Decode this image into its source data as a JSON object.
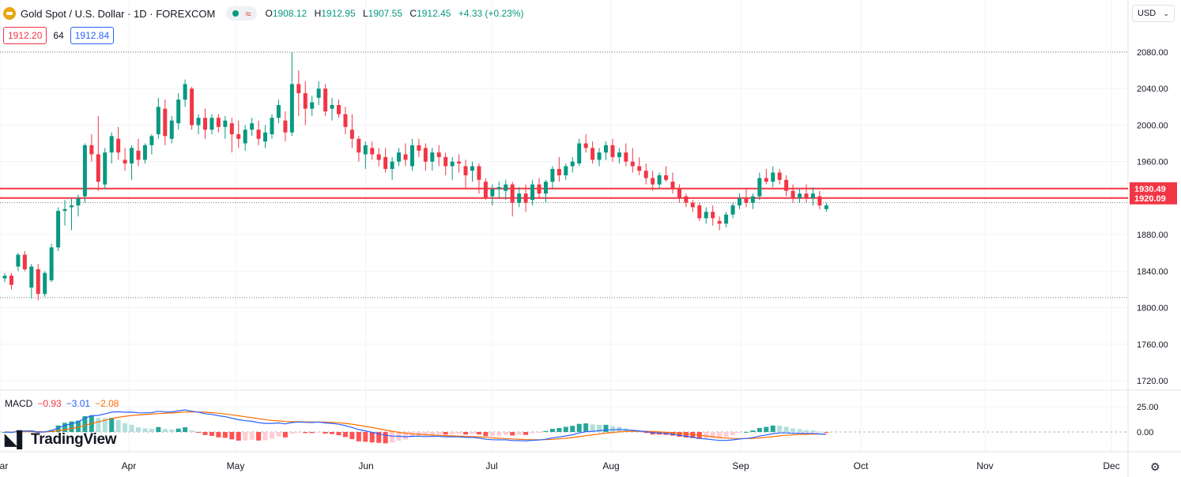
{
  "header": {
    "title": "Gold Spot / U.S. Dollar · 1D · FOREXCOM",
    "open_label": "O",
    "open_value": "1908.12",
    "high_label": "H",
    "high_value": "1912.95",
    "low_label": "L",
    "low_value": "1907.55",
    "close_label": "C",
    "close_value": "1912.45",
    "change": "+4.33 (+0.23%)",
    "indicator_icons": [
      "status-dot-icon",
      "wave-icon"
    ]
  },
  "trade": {
    "sell_price": "1912.20",
    "spread": "64",
    "buy_price": "1912.84"
  },
  "currency": {
    "label": "USD",
    "icon": "chevron-down-icon"
  },
  "macd": {
    "label": "MACD",
    "hist": "−0.93",
    "macd": "−3.01",
    "signal": "−2.08"
  },
  "brand": {
    "label": "TradingView",
    "icon": "tradingview-logo-icon"
  },
  "settings": {
    "icon": "gear-icon"
  },
  "colors": {
    "up": "#089981",
    "down": "#f23645",
    "macd_line": "#2962ff",
    "signal_line": "#ff6d00",
    "hist_up": "#26a69a",
    "hist_up_fading": "#b2dfdb",
    "hist_down": "#ff5252",
    "hist_down_fading": "#ffcdd2"
  },
  "price_levels": [
    {
      "value": "1930.49",
      "price": 1930.49
    },
    {
      "value": "1920.09",
      "price": 1920.09
    }
  ],
  "price_axis": {
    "ticks": [
      "2080.00",
      "2040.00",
      "2000.00",
      "1960.00",
      "1920.00",
      "1880.00",
      "1840.00",
      "1800.00",
      "1760.00",
      "1720.00"
    ],
    "values": [
      2080,
      2040,
      2000,
      1960,
      1920,
      1880,
      1840,
      1800,
      1760,
      1720
    ]
  },
  "macd_axis": {
    "ticks": [
      "25.00",
      "0.00"
    ],
    "values": [
      25,
      0
    ]
  },
  "time_axis": {
    "labels": [
      "Mar",
      "Apr",
      "May",
      "Jun",
      "Jul",
      "Aug",
      "Sep",
      "Oct",
      "Nov",
      "Dec"
    ]
  },
  "chart_data": {
    "type": "candlestick",
    "title": "Gold Spot / U.S. Dollar · 1D · FOREXCOM",
    "ylim": [
      1700,
      2100
    ],
    "candles": [
      [
        1832,
        1838,
        1828,
        1835
      ],
      [
        1835,
        1838,
        1820,
        1825
      ],
      [
        1845,
        1860,
        1840,
        1858
      ],
      [
        1858,
        1862,
        1840,
        1842
      ],
      [
        1822,
        1848,
        1810,
        1845
      ],
      [
        1842,
        1848,
        1808,
        1815
      ],
      [
        1815,
        1840,
        1812,
        1838
      ],
      [
        1830,
        1870,
        1828,
        1866
      ],
      [
        1866,
        1910,
        1862,
        1906
      ],
      [
        1906,
        1918,
        1890,
        1908
      ],
      [
        1910,
        1920,
        1885,
        1912
      ],
      [
        1912,
        1924,
        1900,
        1920
      ],
      [
        1922,
        1980,
        1915,
        1978
      ],
      [
        1978,
        1990,
        1960,
        1968
      ],
      [
        1968,
        2010,
        1928,
        1938
      ],
      [
        1935,
        1975,
        1930,
        1970
      ],
      [
        1970,
        1992,
        1958,
        1988
      ],
      [
        1985,
        1998,
        1962,
        1970
      ],
      [
        1962,
        1975,
        1950,
        1958
      ],
      [
        1958,
        1978,
        1940,
        1975
      ],
      [
        1972,
        1985,
        1955,
        1962
      ],
      [
        1962,
        1980,
        1958,
        1978
      ],
      [
        1978,
        1990,
        1968,
        1988
      ],
      [
        1990,
        2030,
        1985,
        2020
      ],
      [
        2018,
        2028,
        1978,
        1988
      ],
      [
        1985,
        2010,
        1980,
        2005
      ],
      [
        2002,
        2035,
        1995,
        2028
      ],
      [
        2028,
        2050,
        2020,
        2045
      ],
      [
        2040,
        2042,
        1995,
        2000
      ],
      [
        2000,
        2012,
        1990,
        2008
      ],
      [
        2008,
        2018,
        1985,
        1995
      ],
      [
        1995,
        2012,
        1990,
        2008
      ],
      [
        2008,
        2012,
        1992,
        1998
      ],
      [
        1998,
        2010,
        1985,
        2005
      ],
      [
        2002,
        2008,
        1970,
        1990
      ],
      [
        1990,
        2005,
        1975,
        1985
      ],
      [
        1980,
        2000,
        1972,
        1995
      ],
      [
        1995,
        2008,
        1988,
        2002
      ],
      [
        1995,
        2005,
        1978,
        1985
      ],
      [
        1982,
        2000,
        1975,
        1992
      ],
      [
        1990,
        2012,
        1985,
        2008
      ],
      [
        2008,
        2028,
        2002,
        2022
      ],
      [
        2005,
        2015,
        1982,
        1992
      ],
      [
        1992,
        2080,
        1988,
        2045
      ],
      [
        2045,
        2060,
        2010,
        2035
      ],
      [
        2035,
        2048,
        2000,
        2018
      ],
      [
        2018,
        2032,
        2010,
        2025
      ],
      [
        2030,
        2048,
        2022,
        2040
      ],
      [
        2040,
        2045,
        2010,
        2015
      ],
      [
        2018,
        2030,
        2005,
        2022
      ],
      [
        2022,
        2028,
        2008,
        2012
      ],
      [
        2012,
        2020,
        1990,
        1998
      ],
      [
        1995,
        2012,
        1975,
        1985
      ],
      [
        1985,
        1988,
        1960,
        1970
      ],
      [
        1968,
        1982,
        1952,
        1978
      ],
      [
        1975,
        1982,
        1962,
        1968
      ],
      [
        1968,
        1975,
        1955,
        1962
      ],
      [
        1965,
        1975,
        1948,
        1952
      ],
      [
        1952,
        1965,
        1940,
        1960
      ],
      [
        1960,
        1975,
        1955,
        1970
      ],
      [
        1968,
        1980,
        1955,
        1962
      ],
      [
        1955,
        1985,
        1950,
        1978
      ],
      [
        1978,
        1985,
        1965,
        1972
      ],
      [
        1975,
        1980,
        1950,
        1960
      ],
      [
        1960,
        1975,
        1950,
        1970
      ],
      [
        1970,
        1978,
        1955,
        1965
      ],
      [
        1965,
        1970,
        1945,
        1955
      ],
      [
        1955,
        1965,
        1940,
        1960
      ],
      [
        1960,
        1968,
        1948,
        1958
      ],
      [
        1955,
        1962,
        1930,
        1945
      ],
      [
        1950,
        1960,
        1938,
        1955
      ],
      [
        1955,
        1958,
        1925,
        1940
      ],
      [
        1938,
        1942,
        1918,
        1920
      ],
      [
        1922,
        1935,
        1912,
        1930
      ],
      [
        1930,
        1938,
        1920,
        1932
      ],
      [
        1928,
        1940,
        1918,
        1935
      ],
      [
        1935,
        1938,
        1900,
        1915
      ],
      [
        1915,
        1932,
        1910,
        1925
      ],
      [
        1925,
        1935,
        1905,
        1915
      ],
      [
        1918,
        1940,
        1912,
        1935
      ],
      [
        1935,
        1942,
        1920,
        1925
      ],
      [
        1925,
        1940,
        1915,
        1938
      ],
      [
        1938,
        1955,
        1930,
        1952
      ],
      [
        1952,
        1965,
        1938,
        1945
      ],
      [
        1945,
        1958,
        1940,
        1955
      ],
      [
        1955,
        1965,
        1948,
        1960
      ],
      [
        1958,
        1985,
        1955,
        1980
      ],
      [
        1980,
        1990,
        1970,
        1975
      ],
      [
        1975,
        1982,
        1958,
        1962
      ],
      [
        1962,
        1975,
        1955,
        1970
      ],
      [
        1970,
        1982,
        1962,
        1978
      ],
      [
        1978,
        1985,
        1960,
        1965
      ],
      [
        1965,
        1975,
        1958,
        1970
      ],
      [
        1970,
        1980,
        1955,
        1960
      ],
      [
        1960,
        1975,
        1948,
        1955
      ],
      [
        1955,
        1965,
        1945,
        1950
      ],
      [
        1950,
        1958,
        1935,
        1942
      ],
      [
        1942,
        1950,
        1928,
        1935
      ],
      [
        1935,
        1948,
        1930,
        1945
      ],
      [
        1945,
        1955,
        1938,
        1940
      ],
      [
        1938,
        1948,
        1925,
        1930
      ],
      [
        1930,
        1935,
        1915,
        1920
      ],
      [
        1922,
        1925,
        1910,
        1915
      ],
      [
        1915,
        1918,
        1905,
        1910
      ],
      [
        1912,
        1915,
        1895,
        1898
      ],
      [
        1898,
        1910,
        1892,
        1905
      ],
      [
        1905,
        1912,
        1890,
        1898
      ],
      [
        1895,
        1900,
        1885,
        1892
      ],
      [
        1892,
        1905,
        1888,
        1902
      ],
      [
        1902,
        1915,
        1898,
        1912
      ],
      [
        1912,
        1925,
        1908,
        1920
      ],
      [
        1920,
        1930,
        1910,
        1915
      ],
      [
        1915,
        1925,
        1908,
        1922
      ],
      [
        1922,
        1948,
        1918,
        1942
      ],
      [
        1942,
        1952,
        1935,
        1938
      ],
      [
        1938,
        1955,
        1932,
        1948
      ],
      [
        1948,
        1952,
        1935,
        1940
      ],
      [
        1940,
        1945,
        1922,
        1928
      ],
      [
        1928,
        1935,
        1915,
        1920
      ],
      [
        1920,
        1930,
        1915,
        1925
      ],
      [
        1925,
        1935,
        1915,
        1920
      ],
      [
        1920,
        1932,
        1912,
        1925
      ],
      [
        1922,
        1928,
        1908,
        1912
      ],
      [
        1908,
        1915,
        1905,
        1912
      ]
    ]
  }
}
